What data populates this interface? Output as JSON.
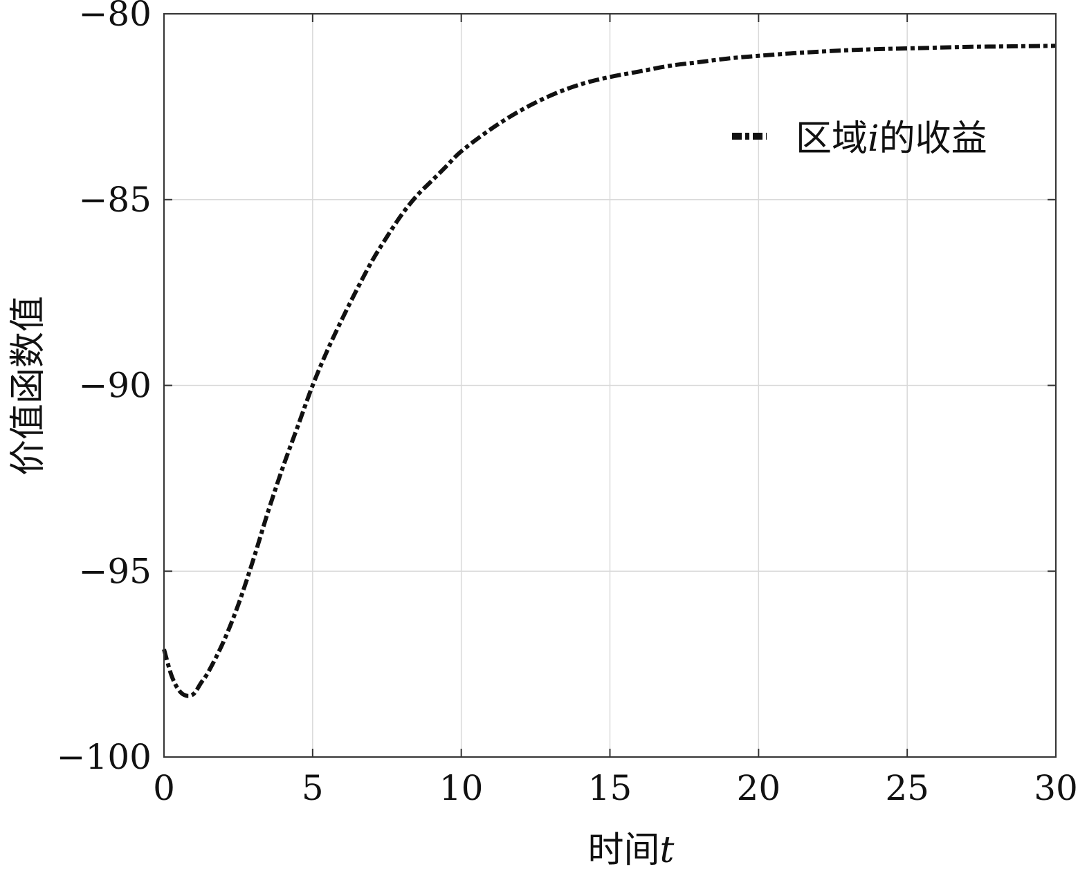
{
  "chart_data": {
    "type": "line",
    "title": "",
    "xlabel": "时间",
    "xlabel_var": "t",
    "ylabel": "价值函数值",
    "xlim": [
      0,
      30
    ],
    "ylim": [
      -100,
      -80
    ],
    "x_ticks": [
      0,
      5,
      10,
      15,
      20,
      25,
      30
    ],
    "y_ticks": [
      -100,
      -95,
      -90,
      -85,
      -80
    ],
    "x_tick_labels": [
      "0",
      "5",
      "10",
      "15",
      "20",
      "25",
      "30"
    ],
    "y_tick_labels": [
      "−100",
      "−95",
      "−90",
      "−85",
      "−80"
    ],
    "grid": true,
    "legend_position": "top-right",
    "series": [
      {
        "name_prefix": "区域",
        "name_var": "i",
        "name_suffix": "的收益",
        "line_style": "dash-dot",
        "color": "#111111",
        "x": [
          0,
          0.25,
          0.5,
          0.75,
          1.0,
          1.25,
          1.5,
          2,
          2.5,
          3,
          3.5,
          4,
          4.5,
          5,
          5.5,
          6,
          6.5,
          7,
          7.5,
          8,
          8.5,
          9,
          9.5,
          10,
          11,
          12,
          13,
          14,
          15,
          16,
          17,
          18,
          19,
          20,
          21,
          22,
          23,
          24,
          25,
          26,
          27,
          28,
          29,
          30
        ],
        "y": [
          -97.1,
          -97.8,
          -98.2,
          -98.35,
          -98.3,
          -98.0,
          -97.7,
          -96.9,
          -95.9,
          -94.7,
          -93.4,
          -92.2,
          -91.1,
          -90.0,
          -89.05,
          -88.2,
          -87.4,
          -86.65,
          -86.0,
          -85.4,
          -84.9,
          -84.5,
          -84.1,
          -83.7,
          -83.1,
          -82.6,
          -82.2,
          -81.9,
          -81.7,
          -81.55,
          -81.4,
          -81.3,
          -81.2,
          -81.13,
          -81.07,
          -81.02,
          -80.98,
          -80.95,
          -80.93,
          -80.91,
          -80.89,
          -80.88,
          -80.87,
          -80.86
        ]
      }
    ]
  }
}
